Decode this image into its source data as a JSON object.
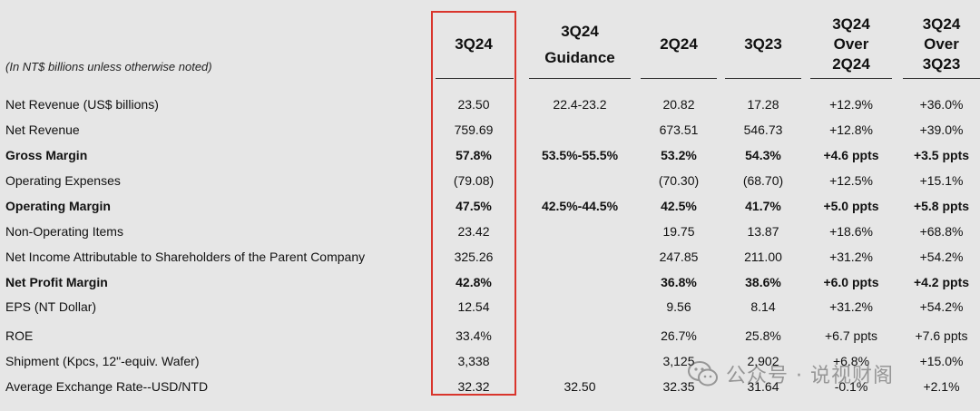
{
  "units_note": "(In NT$ billions unless otherwise noted)",
  "columns": {
    "c3q24": {
      "lines": [
        "3Q24"
      ]
    },
    "guidance": {
      "lines": [
        "3Q24",
        "Guidance"
      ]
    },
    "c2q24": {
      "lines": [
        "2Q24"
      ]
    },
    "c3q23": {
      "lines": [
        "3Q23"
      ]
    },
    "over2q24": {
      "lines": [
        "3Q24",
        "Over",
        "2Q24"
      ]
    },
    "over3q23": {
      "lines": [
        "3Q24",
        "Over",
        "3Q23"
      ]
    }
  },
  "rows": [
    {
      "label": "Net Revenue (US$ billions)",
      "bold": false,
      "c3q24": "23.50",
      "guidance": "22.4-23.2",
      "c2q24": "20.82",
      "c3q23": "17.28",
      "over2q24": "+12.9%",
      "over3q23": "+36.0%"
    },
    {
      "label": "Net Revenue",
      "bold": false,
      "c3q24": "759.69",
      "guidance": "",
      "c2q24": "673.51",
      "c3q23": "546.73",
      "over2q24": "+12.8%",
      "over3q23": "+39.0%"
    },
    {
      "label": "Gross Margin",
      "bold": true,
      "c3q24": "57.8%",
      "guidance": "53.5%-55.5%",
      "c2q24": "53.2%",
      "c3q23": "54.3%",
      "over2q24": "+4.6 ppts",
      "over3q23": "+3.5 ppts"
    },
    {
      "label": "Operating Expenses",
      "bold": false,
      "c3q24": "(79.08)",
      "guidance": "",
      "c2q24": "(70.30)",
      "c3q23": "(68.70)",
      "over2q24": "+12.5%",
      "over3q23": "+15.1%"
    },
    {
      "label": "Operating Margin",
      "bold": true,
      "c3q24": "47.5%",
      "guidance": "42.5%-44.5%",
      "c2q24": "42.5%",
      "c3q23": "41.7%",
      "over2q24": "+5.0 ppts",
      "over3q23": "+5.8 ppts"
    },
    {
      "label": "Non-Operating Items",
      "bold": false,
      "c3q24": "23.42",
      "guidance": "",
      "c2q24": "19.75",
      "c3q23": "13.87",
      "over2q24": "+18.6%",
      "over3q23": "+68.8%"
    },
    {
      "label": "Net Income Attributable to Shareholders of the Parent Company",
      "bold": false,
      "c3q24": "325.26",
      "guidance": "",
      "c2q24": "247.85",
      "c3q23": "211.00",
      "over2q24": "+31.2%",
      "over3q23": "+54.2%"
    },
    {
      "label": "Net Profit Margin",
      "bold": true,
      "c3q24": "42.8%",
      "guidance": "",
      "c2q24": "36.8%",
      "c3q23": "38.6%",
      "over2q24": "+6.0 ppts",
      "over3q23": "+4.2 ppts"
    },
    {
      "label": "EPS (NT Dollar)",
      "bold": false,
      "c3q24": "12.54",
      "guidance": "",
      "c2q24": "9.56",
      "c3q23": "8.14",
      "over2q24": "+31.2%",
      "over3q23": "+54.2%"
    },
    {
      "label": "ROE",
      "bold": false,
      "c3q24": "33.4%",
      "guidance": "",
      "c2q24": "26.7%",
      "c3q23": "25.8%",
      "over2q24": "+6.7 ppts",
      "over3q23": "+7.6 ppts"
    },
    {
      "label": "Shipment (Kpcs, 12\"-equiv. Wafer)",
      "bold": false,
      "c3q24": "3,338",
      "guidance": "",
      "c2q24": "3,125",
      "c3q23": "2,902",
      "over2q24": "+6.8%",
      "over3q23": "+15.0%"
    },
    {
      "label": "Average Exchange Rate--USD/NTD",
      "bold": false,
      "c3q24": "32.32",
      "guidance": "32.50",
      "c2q24": "32.35",
      "c3q23": "31.64",
      "over2q24": "-0.1%",
      "over3q23": "+2.1%"
    }
  ],
  "watermark": {
    "text": "公众号 · 说视财阁",
    "logo_icon": "wechat-logo-icon"
  },
  "colors": {
    "background": "#e6e6e6",
    "highlight_border": "#d9352c"
  }
}
